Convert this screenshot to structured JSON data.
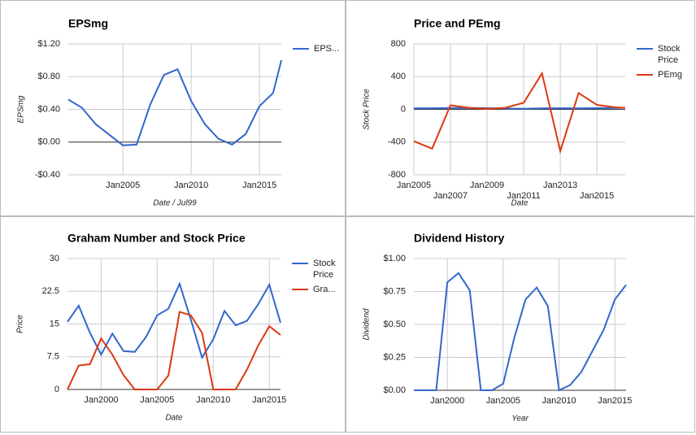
{
  "chart_data": [
    {
      "type": "line",
      "title": "EPSmg",
      "x_label": "Date / Jul99",
      "y_label": "EPSmg",
      "x": [
        2001,
        2002,
        2003,
        2004,
        2005,
        2006,
        2007,
        2008,
        2009,
        2010,
        2011,
        2012,
        2013,
        2014,
        2015,
        2016,
        2016.6
      ],
      "series": [
        {
          "name": "EPS...",
          "color": "#3366cc",
          "values": [
            0.52,
            0.42,
            0.22,
            0.09,
            -0.04,
            -0.03,
            0.46,
            0.82,
            0.89,
            0.5,
            0.22,
            0.04,
            -0.03,
            0.1,
            0.44,
            0.6,
            1.0
          ]
        }
      ],
      "xlim": [
        2001,
        2016.6
      ],
      "xticks": [
        {
          "value": 2005,
          "label": "Jan2005"
        },
        {
          "value": 2010,
          "label": "Jan2010"
        },
        {
          "value": 2015,
          "label": "Jan2015"
        }
      ],
      "ylim": [
        -0.4,
        1.2
      ],
      "yticks": [
        {
          "value": 1.2,
          "label": "$1.20"
        },
        {
          "value": 0.8,
          "label": "$0.80"
        },
        {
          "value": 0.4,
          "label": "$0.40"
        },
        {
          "value": 0,
          "label": "$0.00"
        },
        {
          "value": -0.4,
          "label": "-$0.40"
        }
      ],
      "grid": true,
      "legend": "right"
    },
    {
      "type": "line",
      "title": "Price and PEmg",
      "x_label": "Date",
      "y_label": "Stock Price",
      "x": [
        2005,
        2006,
        2007,
        2008,
        2009,
        2010,
        2011,
        2012,
        2013,
        2014,
        2015,
        2016,
        2016.55
      ],
      "series": [
        {
          "name": "Stock Price",
          "color": "#3366cc",
          "values": [
            12,
            14,
            16,
            18,
            15,
            10,
            8,
            12,
            14,
            13,
            15,
            18,
            20
          ]
        },
        {
          "name": "PEmg",
          "color": "#dc3912",
          "values": [
            -390,
            -480,
            50,
            20,
            5,
            20,
            80,
            440,
            -510,
            200,
            55,
            25,
            20
          ]
        }
      ],
      "xlim": [
        2005,
        2016.55
      ],
      "xticks": [
        {
          "value": 2005,
          "label": "Jan2005"
        },
        {
          "value": 2007,
          "label": "Jan2007"
        },
        {
          "value": 2009,
          "label": "Jan2009"
        },
        {
          "value": 2011,
          "label": "Jan2011"
        },
        {
          "value": 2013,
          "label": "Jan2013"
        },
        {
          "value": 2015,
          "label": "Jan2015"
        }
      ],
      "ylim": [
        -800,
        800
      ],
      "yticks": [
        800,
        400,
        0,
        -400,
        -800
      ],
      "grid": true,
      "legend": "right"
    },
    {
      "type": "line",
      "title": "Graham Number and Stock Price",
      "x_label": "Date",
      "y_label": "Price",
      "x": [
        1997,
        1998,
        1999,
        2000,
        2001,
        2002,
        2003,
        2004,
        2005,
        2006,
        2007,
        2008,
        2009,
        2010,
        2011,
        2012,
        2013,
        2014,
        2015,
        2016
      ],
      "series": [
        {
          "name": "Stock Price",
          "color": "#3366cc",
          "values": [
            15.5,
            19.2,
            13,
            8,
            12.8,
            8.8,
            8.6,
            12,
            17,
            18.5,
            24.2,
            16,
            7.3,
            11.5,
            18,
            14.7,
            15.7,
            19.5,
            24,
            15.3
          ]
        },
        {
          "name": "Gra...",
          "color": "#dc3912",
          "values": [
            0,
            5.5,
            5.8,
            11.7,
            8,
            3.3,
            0,
            0,
            0,
            3.2,
            17.8,
            17,
            13,
            0,
            0,
            0,
            4.5,
            10,
            14.5,
            12.5
          ]
        }
      ],
      "xlim": [
        1997,
        2016
      ],
      "xticks": [
        {
          "value": 2000,
          "label": "Jan2000"
        },
        {
          "value": 2005,
          "label": "Jan2005"
        },
        {
          "value": 2010,
          "label": "Jan2010"
        },
        {
          "value": 2015,
          "label": "Jan2015"
        }
      ],
      "ylim": [
        0,
        30
      ],
      "yticks": [
        30,
        22.5,
        15,
        7.5,
        0
      ],
      "grid": true,
      "legend": "right"
    },
    {
      "type": "line",
      "title": "Dividend History",
      "x_label": "Year",
      "y_label": "Dividend",
      "x": [
        1997,
        1998,
        1999,
        2000,
        2001,
        2002,
        2003,
        2004,
        2005,
        2006,
        2007,
        2008,
        2009,
        2010,
        2011,
        2012,
        2013,
        2014,
        2015,
        2016
      ],
      "series": [
        {
          "color": "#3366cc",
          "values": [
            0,
            0,
            0,
            0.82,
            0.89,
            0.76,
            0,
            0,
            0.05,
            0.4,
            0.69,
            0.78,
            0.64,
            0,
            0.04,
            0.14,
            0.3,
            0.46,
            0.69,
            0.8
          ]
        }
      ],
      "xlim": [
        1997,
        2016
      ],
      "xticks": [
        {
          "value": 2000,
          "label": "Jan2000"
        },
        {
          "value": 2005,
          "label": "Jan2005"
        },
        {
          "value": 2010,
          "label": "Jan2010"
        },
        {
          "value": 2015,
          "label": "Jan2015"
        }
      ],
      "ylim": [
        0,
        1
      ],
      "yticks": [
        {
          "value": 1,
          "label": "$1.00"
        },
        {
          "value": 0.75,
          "label": "$0.75"
        },
        {
          "value": 0.5,
          "label": "$0.50"
        },
        {
          "value": 0.25,
          "label": "$0.25"
        },
        {
          "value": 0,
          "label": "$0.00"
        }
      ],
      "grid": true
    }
  ]
}
